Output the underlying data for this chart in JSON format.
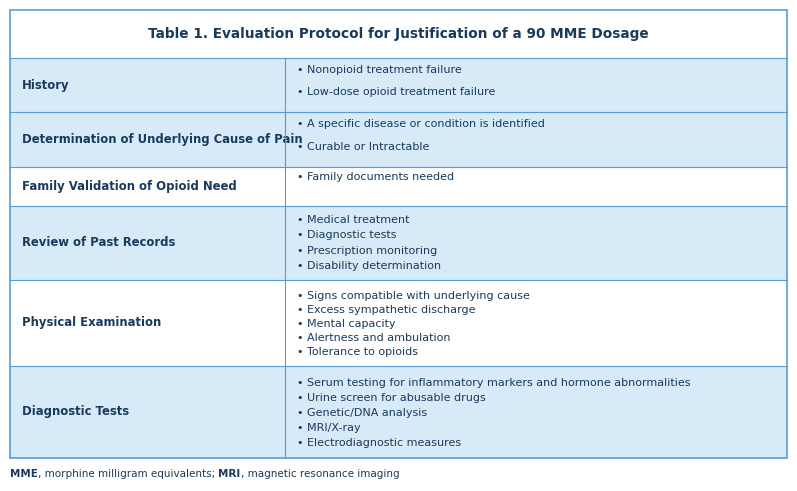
{
  "title": "Table 1. Evaluation Protocol for Justification of a 90 MME Dosage",
  "row_bg_light": "#d6eaf8",
  "row_bg_white": "#ffffff",
  "header_bg": "#ffffff",
  "border_color": "#5b9bd5",
  "text_dark": "#1a3a5c",
  "footnote_parts": [
    {
      "text": "MME",
      "bold": true
    },
    {
      "text": ", morphine milligram equivalents; ",
      "bold": false
    },
    {
      "text": "MRI",
      "bold": true
    },
    {
      "text": ", magnetic resonance imaging",
      "bold": false
    }
  ],
  "rows": [
    {
      "left": "History",
      "right": [
        "Nonopioid treatment failure",
        "Low-dose opioid treatment failure"
      ],
      "bg": "#d6eaf8"
    },
    {
      "left": "Determination of Underlying Cause of Pain",
      "right": [
        "A specific disease or condition is identified",
        "Curable or Intractable"
      ],
      "bg": "#d6eaf8"
    },
    {
      "left": "Family Validation of Opioid Need",
      "right": [
        "Family documents needed"
      ],
      "bg": "#ffffff"
    },
    {
      "left": "Review of Past Records",
      "right": [
        "Medical treatment",
        "Diagnostic tests",
        "Prescription monitoring",
        "Disability determination"
      ],
      "bg": "#d6eaf8"
    },
    {
      "left": "Physical Examination",
      "right": [
        "Signs compatible with underlying cause",
        "Excess sympathetic discharge",
        "Mental capacity",
        "Alertness and ambulation",
        "Tolerance to opioids"
      ],
      "bg": "#ffffff"
    },
    {
      "left": "Diagnostic Tests",
      "right": [
        "Serum testing for inflammatory markers and hormone abnormalities",
        "Urine screen for abusable drugs",
        "Genetic/DNA analysis",
        "MRI/X-ray",
        "Electrodiagnostic measures"
      ],
      "bg": "#d6eaf8"
    }
  ]
}
